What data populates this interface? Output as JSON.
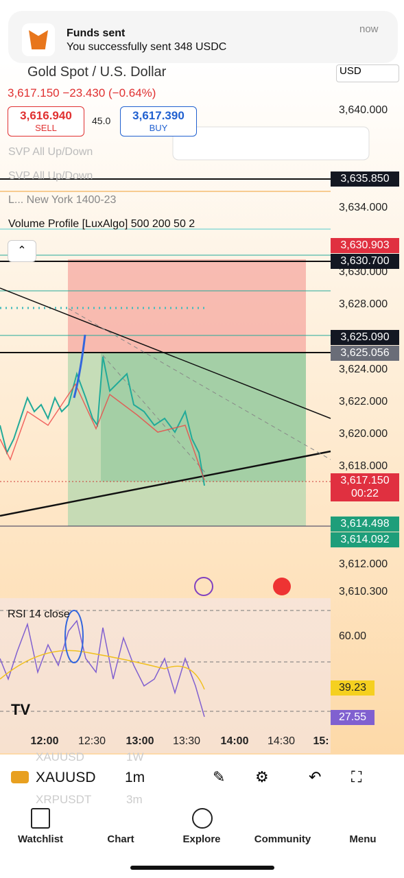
{
  "notification": {
    "title": "Funds sent",
    "message": "You successfully sent 348 USDC",
    "time": "now"
  },
  "header": {
    "symbol": "Gold Spot / U.S. Dollar",
    "currency": "USD",
    "quote": "3,617.150 −23.430 (−0.64%)",
    "sell_price": "3,616.940",
    "sell": "SELL",
    "spread": "45.0",
    "buy_price": "3,617.390",
    "buy": "BUY"
  },
  "indicators": [
    "SVP All Up/Down",
    "SVP All Up/Down",
    "L...  New York 1400-23",
    "Volume Profile [LuxAlgo] 500 200 50 2"
  ],
  "price_axis": [
    "3,640.000",
    "3,634.000",
    "3,630.000",
    "3,628.000",
    "3,624.000",
    "3,622.000",
    "3,620.000",
    "3,618.000",
    "3,612.000",
    "3,610.300"
  ],
  "price_tags": [
    "3,635.850",
    "3,630.903",
    "3,630.700",
    "3,625.090",
    "3,625.056",
    "3,617.150",
    "00:22",
    "3,614.498",
    "3,614.092"
  ],
  "rsi": {
    "label": "RSI 14 close",
    "axis": [
      "60.00"
    ],
    "tags": [
      "39.23",
      "27.55"
    ]
  },
  "time_axis": [
    "12:00",
    "12:30",
    "13:00",
    "13:30",
    "14:00",
    "14:30",
    "15:"
  ],
  "toolbar": {
    "prev_symbol": "XAUUSD",
    "prev_interval": "1W",
    "symbol": "XAUUSD",
    "interval": "1m",
    "next_symbol": "XRPUSDT",
    "next_interval": "3m"
  },
  "nav": [
    "Watchlist",
    "Chart",
    "Explore",
    "Community",
    "Menu"
  ]
}
